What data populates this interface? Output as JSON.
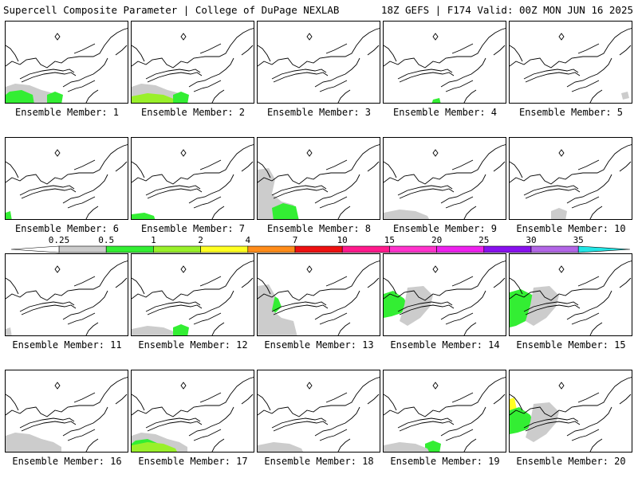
{
  "header": {
    "left": "Supercell Composite Parameter | College of DuPage NEXLAB",
    "right": "18Z GEFS | F174 Valid: 00Z MON JUN 16 2025"
  },
  "label_prefix": "Ensemble Member:",
  "colors": {
    "0.25": "#cccccc",
    "0.5": "#33ee33",
    "1": "#99f02a",
    "2": "#ffff22",
    "4": "#ff8c1a",
    "7": "#ee1111",
    "10": "#ff1a8c",
    "15": "#ff33cc",
    "20": "#ee22ee",
    "25": "#8811ee",
    "30": "#b266e6",
    "35": "#22e6e6"
  },
  "colorbar": {
    "ticks": [
      "0.25",
      "0.5",
      "1",
      "2",
      "4",
      "7",
      "10",
      "15",
      "20",
      "25",
      "30",
      "35"
    ]
  },
  "members": [
    {
      "number": "1",
      "features": [
        [
          "gray",
          "sw-large"
        ],
        [
          "green",
          "sw-mid"
        ],
        [
          "green",
          "s-mid"
        ]
      ]
    },
    {
      "number": "2",
      "features": [
        [
          "gray",
          "sw-large"
        ],
        [
          "lime",
          "s-left"
        ],
        [
          "green",
          "s-mid"
        ]
      ]
    },
    {
      "number": "3",
      "features": []
    },
    {
      "number": "4",
      "features": [
        [
          "green",
          "s-tiny"
        ]
      ]
    },
    {
      "number": "5",
      "features": [
        [
          "gray",
          "se-tiny"
        ]
      ]
    },
    {
      "number": "6",
      "features": [
        [
          "green",
          "sw-tiny"
        ]
      ]
    },
    {
      "number": "7",
      "features": [
        [
          "green",
          "sw-low"
        ]
      ]
    },
    {
      "number": "8",
      "features": [
        [
          "gray",
          "west-wide"
        ],
        [
          "green",
          "sw-center"
        ]
      ]
    },
    {
      "number": "9",
      "features": [
        [
          "gray",
          "s-left"
        ]
      ]
    },
    {
      "number": "10",
      "features": [
        [
          "gray",
          "s-mid"
        ]
      ]
    },
    {
      "number": "11",
      "features": [
        [
          "gray",
          "sw-tiny"
        ]
      ]
    },
    {
      "number": "12",
      "features": [
        [
          "gray",
          "s-left"
        ],
        [
          "green",
          "s-mid"
        ]
      ]
    },
    {
      "number": "13",
      "features": [
        [
          "green",
          "west-mid"
        ],
        [
          "gray",
          "west-wide"
        ]
      ]
    },
    {
      "number": "14",
      "features": [
        [
          "green",
          "west-mid"
        ],
        [
          "gray",
          "center-wide"
        ]
      ]
    },
    {
      "number": "15",
      "features": [
        [
          "green",
          "west-large"
        ],
        [
          "gray",
          "center-wide"
        ]
      ]
    },
    {
      "number": "16",
      "features": [
        [
          "gray",
          "sw-large"
        ]
      ]
    },
    {
      "number": "17",
      "features": [
        [
          "gray",
          "sw-large"
        ],
        [
          "green",
          "sw-mid"
        ],
        [
          "lime",
          "s-left"
        ]
      ]
    },
    {
      "number": "18",
      "features": [
        [
          "gray",
          "s-left"
        ]
      ]
    },
    {
      "number": "19",
      "features": [
        [
          "green",
          "s-mid"
        ],
        [
          "gray",
          "s-left"
        ]
      ]
    },
    {
      "number": "20",
      "features": [
        [
          "yellow",
          "west-strip"
        ],
        [
          "green",
          "west-mid"
        ],
        [
          "gray",
          "center-wide"
        ]
      ]
    }
  ]
}
